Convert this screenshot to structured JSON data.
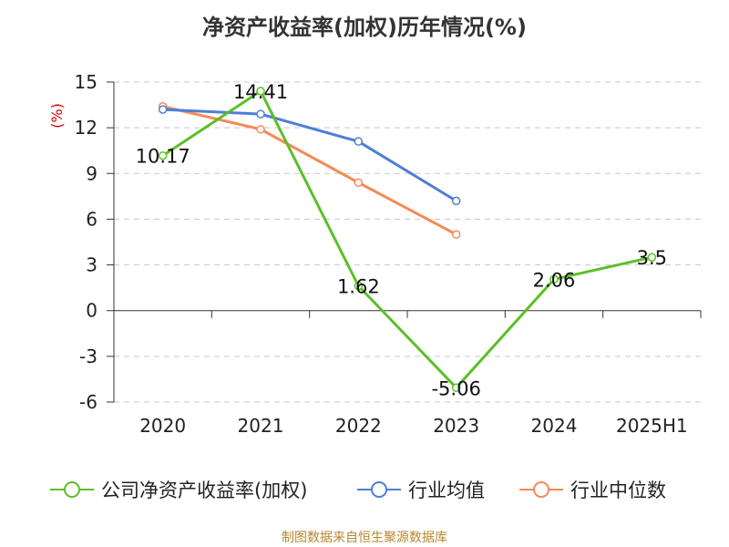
{
  "chart_data": {
    "type": "line",
    "title": "净资产收益率(加权)历年情况(%)",
    "ylabel": "(%)",
    "xlabel": "",
    "categories": [
      "2020",
      "2021",
      "2022",
      "2023",
      "2024",
      "2025H1"
    ],
    "ylim": [
      -6,
      15
    ],
    "yticks": [
      -6,
      -3,
      0,
      3,
      6,
      9,
      12,
      15
    ],
    "grid": true,
    "legend_position": "bottom",
    "series": [
      {
        "name": "公司净资产收益率(加权)",
        "color": "#5cbf25",
        "values": [
          10.17,
          14.41,
          1.62,
          -5.06,
          2.06,
          3.5
        ],
        "labels": [
          "10.17",
          "14.41",
          "1.62",
          "-5.06",
          "2.06",
          "3.5"
        ]
      },
      {
        "name": "行业均值",
        "color": "#4d7fd6",
        "values": [
          13.2,
          12.9,
          11.1,
          7.2,
          null,
          null
        ]
      },
      {
        "name": "行业中位数",
        "color": "#f58a56",
        "values": [
          13.4,
          11.9,
          8.4,
          5.0,
          null,
          null
        ]
      }
    ]
  },
  "source": "制图数据来自恒生聚源数据库"
}
